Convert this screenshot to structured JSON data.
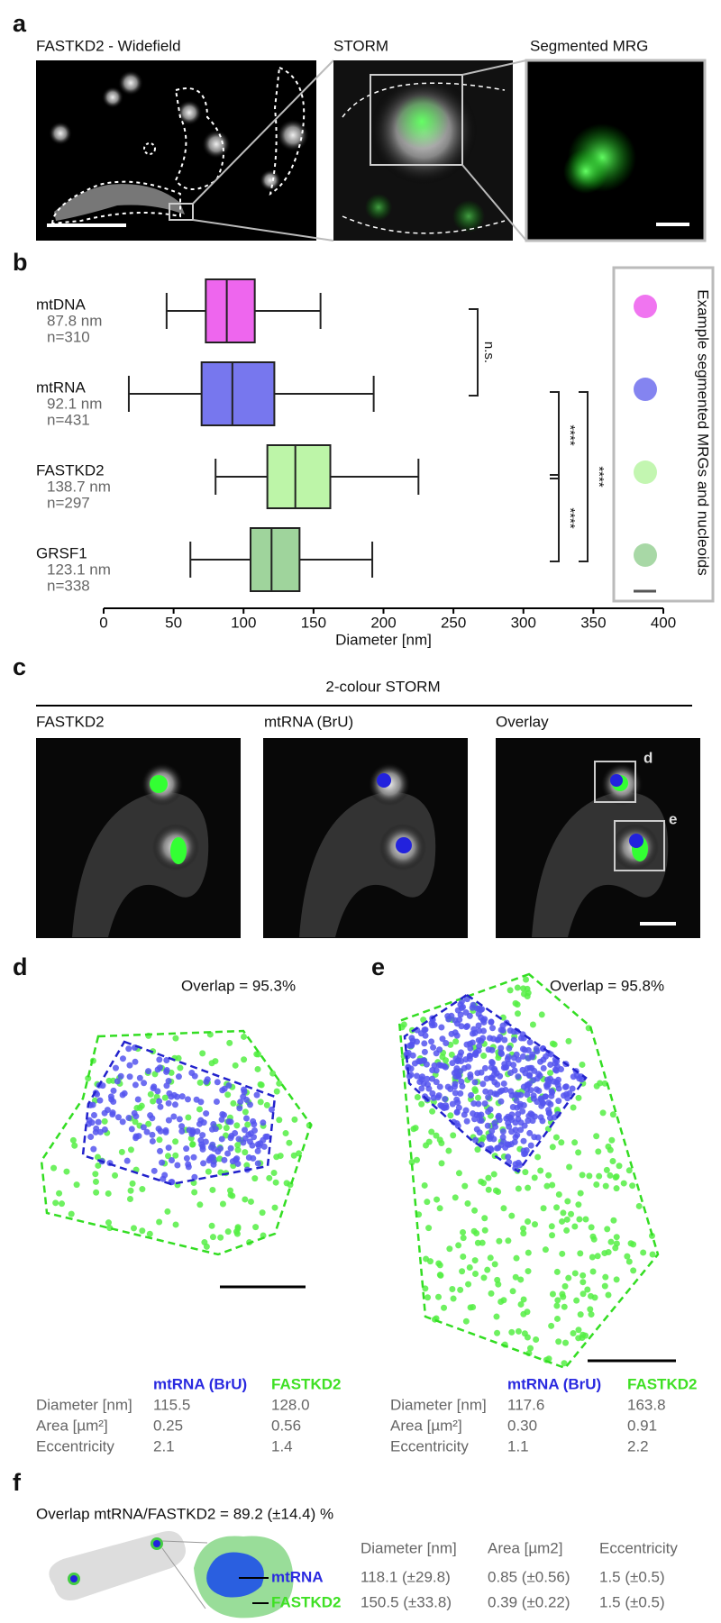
{
  "panel_a": {
    "letter": "a",
    "titles": [
      "FASTKD2 - Widefield",
      "STORM",
      "Segmented MRG"
    ]
  },
  "chart_data": {
    "type": "box",
    "letter": "b",
    "xlabel": "Diameter [nm]",
    "xlim": [
      0,
      400
    ],
    "xticks": [
      0,
      50,
      100,
      150,
      200,
      250,
      300,
      350,
      400
    ],
    "series": [
      {
        "name": "mtDNA",
        "color": "#ee66ee",
        "size_label": "87.8 nm",
        "n_label": "n=310",
        "whislo": 45,
        "q1": 73,
        "med": 88,
        "q3": 108,
        "whishi": 155
      },
      {
        "name": "mtRNA",
        "color": "#7777ee",
        "size_label": "92.1 nm",
        "n_label": "n=431",
        "whislo": 18,
        "q1": 70,
        "med": 92,
        "q3": 122,
        "whishi": 193
      },
      {
        "name": "FASTKD2",
        "color": "#bdf5a8",
        "size_label": "138.7 nm",
        "n_label": "n=297",
        "whislo": 80,
        "q1": 117,
        "med": 137,
        "q3": 162,
        "whishi": 225
      },
      {
        "name": "GRSF1",
        "color": "#9fd49c",
        "size_label": "123.1 nm",
        "n_label": "n=338",
        "whislo": 62,
        "q1": 105,
        "med": 120,
        "q3": 140,
        "whishi": 192
      }
    ],
    "significance": [
      "n.s.",
      "****",
      "****",
      "****"
    ],
    "side_label": "Example segmented MRGs and nucleoids"
  },
  "panel_c": {
    "letter": "c",
    "title": "2-colour STORM",
    "captions": [
      "FASTKD2",
      "mtRNA (BrU)",
      "Overlay"
    ],
    "inset_labels": [
      "d",
      "e"
    ]
  },
  "panel_d": {
    "letter": "d",
    "overlap": "Overlap = 95.3%",
    "table": {
      "header": [
        "mtRNA (BrU)",
        "FASTKD2"
      ],
      "rows": [
        [
          "Diameter [nm]",
          "115.5",
          "128.0"
        ],
        [
          "Area [µm²]",
          "0.25",
          "0.56"
        ],
        [
          "Eccentricity",
          "2.1",
          "1.4"
        ]
      ]
    }
  },
  "panel_e": {
    "letter": "e",
    "overlap": "Overlap = 95.8%",
    "table": {
      "header": [
        "mtRNA (BrU)",
        "FASTKD2"
      ],
      "rows": [
        [
          "Diameter [nm]",
          "117.6",
          "163.8"
        ],
        [
          "Area [µm²]",
          "0.30",
          "0.91"
        ],
        [
          "Eccentricity",
          "1.1",
          "2.2"
        ]
      ]
    }
  },
  "panel_f": {
    "letter": "f",
    "title": "Overlap mtRNA/FASTKD2 = 89.2 (±14.4) %",
    "labels": [
      "mtRNA",
      "FASTKD2"
    ],
    "table": {
      "header": [
        "Diameter [nm]",
        "Area [µm2]",
        "Eccentricity"
      ],
      "rows": [
        [
          "118.1 (±29.8)",
          "0.85 (±0.56)",
          "1.5 (±0.5)"
        ],
        [
          "150.5 (±33.8)",
          "0.39 (±0.22)",
          "1.5 (±0.5)"
        ]
      ]
    }
  }
}
